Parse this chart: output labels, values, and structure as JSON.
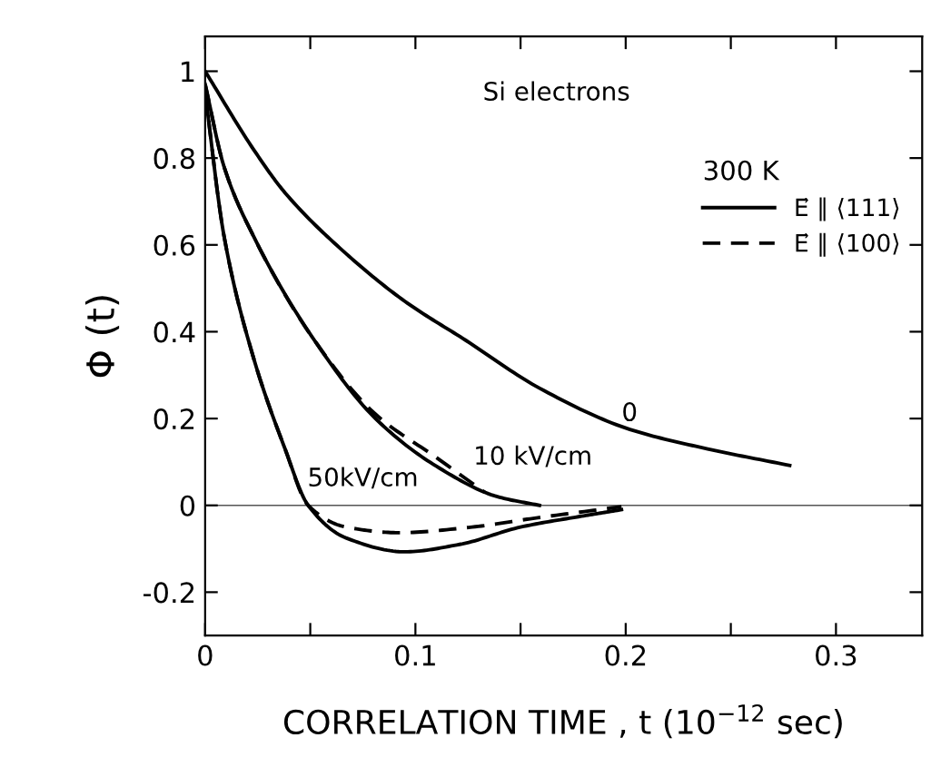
{
  "chart_data": {
    "type": "line",
    "xlabel": "CORRELATION TIME , t (10$^{−12}$ sec)",
    "ylabel": "Φ (t)",
    "legend_title": "300 K",
    "annotations": [
      "Si electrons",
      "0",
      "10 kV/cm",
      "50kV/cm"
    ],
    "series": [
      {
        "color": "#000000",
        "line_style": "solid",
        "x": [
          0,
          0.023,
          0.038,
          0.067,
          0.095,
          0.124,
          0.159,
          0.202,
          0.239,
          0.278
        ],
        "values": [
          1,
          0.82,
          0.72,
          0.58,
          0.47,
          0.38,
          0.27,
          0.175,
          0.13,
          0.092
        ]
      },
      {
        "name": "E⃗ ∥ ⟨111⟩",
        "color": "#000000",
        "line_style": "solid",
        "x": [
          0,
          0.009,
          0.023,
          0.052,
          0.081,
          0.11,
          0.139,
          0.159
        ],
        "values": [
          0.97,
          0.78,
          0.62,
          0.38,
          0.2,
          0.09,
          0.02,
          0.0
        ]
      },
      {
        "name": "E⃗ ∥ ⟨100⟩",
        "color": "#000000",
        "line_style": "dashed",
        "x": [
          0,
          0.009,
          0.023,
          0.052,
          0.081,
          0.11,
          0.133
        ],
        "values": [
          0.97,
          0.78,
          0.62,
          0.38,
          0.21,
          0.11,
          0.03
        ]
      },
      {
        "color": "#000000",
        "line_style": "solid",
        "x": [
          0,
          0.009,
          0.023,
          0.038,
          0.049,
          0.067,
          0.095,
          0.121,
          0.15,
          0.179,
          0.198
        ],
        "values": [
          0.95,
          0.62,
          0.34,
          0.13,
          0.0,
          -0.075,
          -0.107,
          -0.09,
          -0.05,
          -0.025,
          -0.01
        ]
      },
      {
        "color": "#000000",
        "line_style": "dashed",
        "x": [
          0,
          0.009,
          0.023,
          0.038,
          0.049,
          0.067,
          0.092,
          0.127,
          0.156,
          0.198
        ],
        "values": [
          0.95,
          0.62,
          0.34,
          0.13,
          0.0,
          -0.05,
          -0.063,
          -0.05,
          -0.03,
          -0.003
        ]
      }
    ],
    "xlim": [
      0,
      0.341
    ],
    "ylim": [
      -0.3,
      1.08
    ],
    "xticks": [
      0,
      {
        "value": 0.05,
        "label": null
      },
      0.1,
      {
        "value": 0.15,
        "label": null
      },
      0.2,
      {
        "value": 0.25,
        "label": null
      },
      0.3
    ],
    "yticks": [
      -0.2,
      0,
      0.2,
      0.4,
      0.6,
      0.8,
      1
    ],
    "ref_lines": [
      {
        "axis": "y",
        "value": 0,
        "color": "#555555"
      }
    ],
    "grid": false,
    "legend": "top right"
  }
}
